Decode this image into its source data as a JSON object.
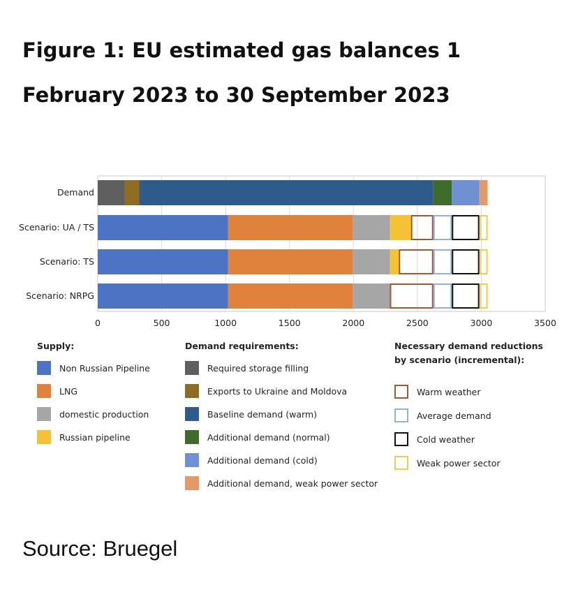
{
  "title": "Figure 1: EU estimated gas balances 1 February 2023 to 30 September 2023",
  "source": "Source: Bruegel",
  "legend": {
    "supply_heading": "Supply:",
    "demand_heading": "Demand requirements:",
    "reductions_heading_line1": "Necessary demand reductions",
    "reductions_heading_line2": "by scenario (incremental):",
    "supply_items": [
      {
        "label": "Non Russian Pipeline",
        "color": "#4c73c4"
      },
      {
        "label": "LNG",
        "color": "#e0823c"
      },
      {
        "label": "domestic production",
        "color": "#a6a6a6"
      },
      {
        "label": "Russian pipeline",
        "color": "#f5c135"
      }
    ],
    "demand_items": [
      {
        "label": "Required storage filling",
        "color": "#5f5f5f"
      },
      {
        "label": "Exports to Ukraine and Moldova",
        "color": "#8e6c22"
      },
      {
        "label": "Baseline demand (warm)",
        "color": "#2e5a8c"
      },
      {
        "label": "Additional demand (normal)",
        "color": "#3f6b2d"
      },
      {
        "label": "Additional demand (cold)",
        "color": "#7090d4"
      },
      {
        "label": "Additional demand, weak power sector",
        "color": "#e49a66"
      }
    ],
    "reduction_items": [
      {
        "label": "Warm weather",
        "color": "#9c5a33"
      },
      {
        "label": "Average demand",
        "color": "#93aee0"
      },
      {
        "label": "Cold weather",
        "color": "#111111"
      },
      {
        "label": "Weak power sector",
        "color": "#f0cc4a"
      }
    ]
  },
  "chart_data": {
    "type": "bar",
    "orientation": "horizontal",
    "stacked": true,
    "xlim": [
      0,
      3500
    ],
    "x_ticks": [
      "0",
      "500",
      "1000",
      "1500",
      "2000",
      "2500",
      "3000",
      "3500"
    ],
    "categories": [
      "Demand",
      "Scenario: UA / TS",
      "Scenario: TS",
      "Scenario: NRPG"
    ],
    "rows": [
      {
        "category": "Demand",
        "segments": [
          {
            "name": "Required storage filling",
            "value": 210,
            "color": "#5f5f5f"
          },
          {
            "name": "Exports to Ukraine and Moldova",
            "value": 115,
            "color": "#8e6c22"
          },
          {
            "name": "Baseline demand (warm)",
            "value": 2300,
            "color": "#2e5a8c"
          },
          {
            "name": "Additional demand (normal)",
            "value": 145,
            "color": "#3f6b2d"
          },
          {
            "name": "Additional demand (cold)",
            "value": 215,
            "color": "#7090d4"
          },
          {
            "name": "Additional demand, weak power sector",
            "value": 65,
            "color": "#e49a66"
          }
        ]
      },
      {
        "category": "Scenario: UA / TS",
        "segments": [
          {
            "name": "Non Russian Pipeline",
            "value": 1020,
            "color": "#4c73c4"
          },
          {
            "name": "LNG",
            "value": 975,
            "color": "#e0823c"
          },
          {
            "name": "domestic production",
            "value": 290,
            "color": "#a6a6a6"
          },
          {
            "name": "Russian pipeline",
            "value": 165,
            "color": "#f5c135"
          }
        ],
        "reductions": [
          {
            "name": "Warm weather",
            "value": 175,
            "color": "#9c5a33"
          },
          {
            "name": "Average demand",
            "value": 145,
            "color": "#93aee0"
          },
          {
            "name": "Cold weather",
            "value": 215,
            "color": "#111111"
          },
          {
            "name": "Weak power sector",
            "value": 65,
            "color": "#f0cc4a"
          }
        ]
      },
      {
        "category": "Scenario: TS",
        "segments": [
          {
            "name": "Non Russian Pipeline",
            "value": 1020,
            "color": "#4c73c4"
          },
          {
            "name": "LNG",
            "value": 975,
            "color": "#e0823c"
          },
          {
            "name": "domestic production",
            "value": 290,
            "color": "#a6a6a6"
          },
          {
            "name": "Russian pipeline",
            "value": 70,
            "color": "#f5c135"
          }
        ],
        "reductions": [
          {
            "name": "Warm weather",
            "value": 270,
            "color": "#9c5a33"
          },
          {
            "name": "Average demand",
            "value": 145,
            "color": "#93aee0"
          },
          {
            "name": "Cold weather",
            "value": 215,
            "color": "#111111"
          },
          {
            "name": "Weak power sector",
            "value": 65,
            "color": "#f0cc4a"
          }
        ]
      },
      {
        "category": "Scenario: NRPG",
        "segments": [
          {
            "name": "Non Russian Pipeline",
            "value": 1020,
            "color": "#4c73c4"
          },
          {
            "name": "LNG",
            "value": 975,
            "color": "#e0823c"
          },
          {
            "name": "domestic production",
            "value": 290,
            "color": "#a6a6a6"
          }
        ],
        "reductions": [
          {
            "name": "Warm weather",
            "value": 340,
            "color": "#9c5a33"
          },
          {
            "name": "Average demand",
            "value": 145,
            "color": "#93aee0"
          },
          {
            "name": "Cold weather",
            "value": 215,
            "color": "#111111"
          },
          {
            "name": "Weak power sector",
            "value": 65,
            "color": "#f0cc4a"
          }
        ]
      }
    ],
    "grid": "vertical",
    "legend_position": "bottom"
  }
}
